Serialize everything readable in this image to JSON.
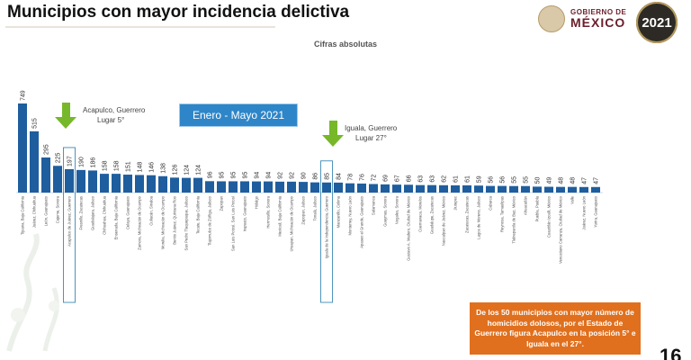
{
  "slide": {
    "title": "Municipios con mayor incidencia delictiva",
    "subtitle": "Cifras absolutas",
    "period": "Enero - Mayo 2021",
    "page_number": "16",
    "logo_line1": "GOBIERNO DE",
    "logo_line2": "MÉXICO",
    "logo_year": "2021"
  },
  "annotations": {
    "acapulco_line1": "Acapulco, Guerrero",
    "acapulco_line2": "Lugar 5°",
    "iguala_line1": "Iguala, Guerrero",
    "iguala_line2": "Lugar 27°"
  },
  "note": "De los 50 municipios con mayor número de homicidios dolosos, por el Estado de Guerrero figura Acapulco en la posición 5° e Iguala en el 27°.",
  "colors": {
    "bar": "#1f5e9e",
    "highlight_box": "#3a8ab5",
    "arrow": "#76b82a",
    "note": "#e0701e",
    "period_box": "#2e86c8"
  },
  "chart_data": {
    "type": "bar",
    "title": "Municipios con mayor incidencia delictiva",
    "subtitle": "Cifras absolutas",
    "categories": [
      "Tijuana, Baja California",
      "Juárez, Chihuahua",
      "León, Guanajuato",
      "Cajeme, Sonora",
      "Acapulco de Juárez, Guerrero",
      "Fresnillo, Zacatecas",
      "Guadalajara, Jalisco",
      "Chihuahua, Chihuahua",
      "Ensenada, Baja California",
      "Celaya, Guanajuato",
      "Zamora, Michoacán de Ocampo",
      "Culiacán, Sinaloa",
      "Morelia, Michoacán de Ocampo",
      "Benito Juárez, Quintana Roo",
      "San Pedro Tlaquepaque, Jalisco",
      "Tecate, Baja California",
      "Tlajomulco de Zúñiga, Jalisco",
      "Zapopan",
      "San Luis Potosí, San Luis Potosí",
      "Irapuato, Guanajuato",
      "Hidalgo",
      "Hermosillo, Sonora",
      "Mexicali, Baja California",
      "Uruapan, Michoacán de Ocampo",
      "Zapopan, Jalisco",
      "Tonalá, Jalisco",
      "Iguala de la Independencia, Guerrero",
      "Manzanillo, Colima",
      "Monterrey, Nuevo León",
      "Apaseo el Grande, Guanajuato",
      "Salamanca",
      "Guaymas, Sonora",
      "Nogales, Sonora",
      "Gustavo A. Madero, Ciudad de México",
      "Cuernavaca, Morelos",
      "Guadalupe, Zacatecas",
      "Naucalpan de Juárez, México",
      "Jiutepec",
      "Zacatecas, Zacatecas",
      "Lagos de Moreno, Jalisco",
      "Cabarca",
      "Reynosa, Tamaulipas",
      "Tlalnepantla de Baz, México",
      "Ahuacatlán",
      "Puebla, Puebla",
      "Cuautitlán Izcalli, México",
      "Venustiano Carranza, Ciudad de México",
      "Valle",
      "Juárez, Nuevo León",
      "Yurira, Guanajuato"
    ],
    "values": [
      749,
      515,
      295,
      225,
      197,
      190,
      186,
      158,
      158,
      151,
      148,
      146,
      138,
      126,
      124,
      124,
      96,
      95,
      95,
      95,
      94,
      94,
      92,
      92,
      90,
      86,
      85,
      84,
      78,
      76,
      72,
      69,
      67,
      66,
      63,
      63,
      62,
      61,
      61,
      59,
      56,
      56,
      55,
      55,
      50,
      49,
      48,
      48,
      47,
      47
    ],
    "highlighted": [
      "Acapulco de Juárez, Guerrero",
      "Iguala de la Independencia, Guerrero"
    ],
    "xlabel": "",
    "ylabel": "",
    "ylim": [
      0,
      800
    ],
    "grid": false,
    "legend": "none",
    "value_labels": true
  }
}
